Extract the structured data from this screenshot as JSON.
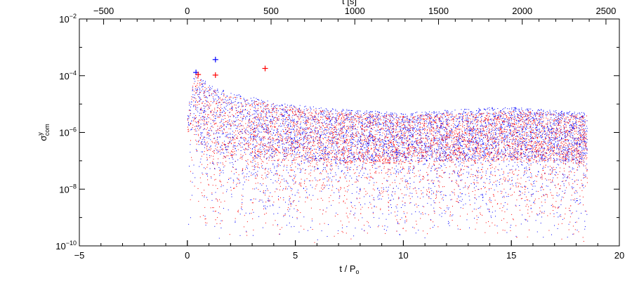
{
  "chart_data": {
    "type": "scatter",
    "title": "",
    "xlabel": "t / P",
    "xlabel_sub": "o",
    "top_xlabel": "t [s]",
    "ylabel": "σ",
    "ylabel_sup": "y",
    "ylabel_sub": "com",
    "xlim": [
      -5,
      20
    ],
    "top_xlim": [
      -645,
      2580
    ],
    "ylim": [
      1e-10,
      0.01
    ],
    "y_scale": "log",
    "grid": false,
    "x_ticks": [
      -5,
      0,
      5,
      10,
      15,
      20
    ],
    "x_tick_labels": [
      "−5",
      "0",
      "5",
      "10",
      "15",
      "20"
    ],
    "top_x_ticks": [
      -500,
      0,
      500,
      1000,
      1500,
      2000,
      2500
    ],
    "top_x_tick_labels": [
      "−500",
      "0",
      "500",
      "1000",
      "1500",
      "2000",
      "2500"
    ],
    "y_ticks": [
      1e-10,
      1e-08,
      1e-06,
      0.0001,
      0.01
    ],
    "y_tick_bases": [
      "10",
      "10",
      "10",
      "10",
      "10"
    ],
    "y_tick_exps": [
      "−10",
      "−8",
      "−6",
      "−4",
      "−2"
    ],
    "series": [
      {
        "color": "#0000ff",
        "marker": "dot",
        "x_range": [
          0,
          18.5
        ],
        "envelope_x": [
          0,
          0.3,
          0.6,
          1,
          2,
          4,
          6,
          8,
          10,
          12,
          14,
          15,
          17,
          18.5
        ],
        "envelope_upper_log10": [
          -5.2,
          -3.9,
          -4.0,
          -4.3,
          -4.6,
          -4.9,
          -5.1,
          -5.2,
          -5.3,
          -5.2,
          -5.1,
          -5.1,
          -5.2,
          -5.3
        ],
        "envelope_core_low_log10": [
          -6.0,
          -5.8,
          -6.3,
          -6.6,
          -6.8,
          -6.9,
          -7.0,
          -7.0,
          -7.0,
          -7.0,
          -6.9,
          -6.9,
          -7.0,
          -7.0
        ],
        "envelope_sparse_low_log10": [
          -9.5,
          -9.3,
          -9.5,
          -9.7,
          -9.8,
          -9.8,
          -9.9,
          -9.9,
          -9.9,
          -9.8,
          -9.8,
          -9.8,
          -9.9,
          -9.9
        ],
        "outliers": [
          {
            "x": 0.4,
            "y": 0.00013
          },
          {
            "x": 1.3,
            "y": 0.00037
          }
        ]
      },
      {
        "color": "#ff0000",
        "marker": "dot",
        "x_range": [
          0,
          18.5
        ],
        "envelope_x": [
          0,
          0.3,
          0.6,
          1,
          2,
          4,
          6,
          8,
          10,
          12,
          14,
          15,
          17,
          18.5
        ],
        "envelope_upper_log10": [
          -5.2,
          -4.0,
          -4.1,
          -4.4,
          -4.7,
          -5.0,
          -5.2,
          -5.3,
          -5.4,
          -5.3,
          -5.3,
          -5.2,
          -5.3,
          -5.4
        ],
        "envelope_core_low_log10": [
          -6.0,
          -5.9,
          -6.4,
          -6.7,
          -6.9,
          -7.0,
          -7.0,
          -7.1,
          -7.1,
          -7.0,
          -7.0,
          -7.0,
          -7.0,
          -7.1
        ],
        "envelope_sparse_low_log10": [
          -9.6,
          -9.4,
          -9.6,
          -9.8,
          -9.9,
          -9.9,
          -9.9,
          -9.9,
          -9.9,
          -9.9,
          -9.9,
          -9.9,
          -9.9,
          -9.9
        ],
        "outliers": [
          {
            "x": 0.5,
            "y": 0.00011
          },
          {
            "x": 1.3,
            "y": 0.000105
          },
          {
            "x": 3.6,
            "y": 0.00018
          }
        ]
      }
    ]
  }
}
